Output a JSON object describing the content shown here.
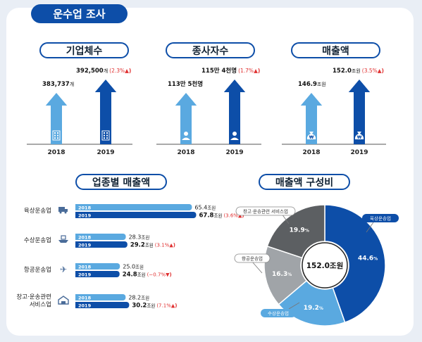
{
  "page": {
    "title": "운수업 조사"
  },
  "kpis": [
    {
      "title": "기업체수",
      "items": [
        {
          "year": "2018",
          "value": "383,737",
          "unit": "개",
          "change": ""
        },
        {
          "year": "2019",
          "value": "392,500",
          "unit": "개",
          "change": "(2.3%"
        }
      ],
      "icon": "building-icon"
    },
    {
      "title": "종사자수",
      "items": [
        {
          "year": "2018",
          "value": "113만 5천명",
          "unit": "",
          "change": ""
        },
        {
          "year": "2019",
          "value": "115만 4천명",
          "unit": "",
          "change": "(1.7%"
        }
      ],
      "icon": "person-icon"
    },
    {
      "title": "매출액",
      "items": [
        {
          "year": "2018",
          "value": "146.9",
          "unit": "조원",
          "change": ""
        },
        {
          "year": "2019",
          "value": "152.0",
          "unit": "조원",
          "change": "(3.5%"
        }
      ],
      "icon": "money-bag-icon"
    }
  ],
  "sales_by_industry": {
    "title": "업종별 매출액",
    "unit": "조원",
    "rows": [
      {
        "name": "육상운송업",
        "icon": "truck-icon",
        "v2018": "65.4",
        "v2019": "67.8",
        "change": "(3.6%",
        "direction": "up"
      },
      {
        "name": "수상운송업",
        "icon": "ship-icon",
        "v2018": "28.3",
        "v2019": "29.2",
        "change": "(3.1%",
        "direction": "up"
      },
      {
        "name": "항공운송업",
        "icon": "airplane-icon",
        "v2018": "25.0",
        "v2019": "24.8",
        "change": "(−0.7%",
        "direction": "down"
      },
      {
        "name": "창고·운송관련\n서비스업",
        "icon": "warehouse-icon",
        "v2018": "28.2",
        "v2019": "30.2",
        "change": "(7.1%",
        "direction": "up"
      }
    ],
    "year_labels": [
      "2018",
      "2019"
    ]
  },
  "composition": {
    "title": "매출액 구성비",
    "center_label": "152.0조원"
  },
  "colors": {
    "dark_blue": "#0d4ea8",
    "light_blue": "#5aa9e0",
    "red": "#e03030",
    "donut_gray": "#a0a4a8",
    "donut_dark": "#5c5f62"
  },
  "chart_data": [
    {
      "type": "bar",
      "title": "기업체수",
      "categories": [
        "2018",
        "2019"
      ],
      "values": [
        383737,
        392500
      ],
      "unit": "개"
    },
    {
      "type": "bar",
      "title": "종사자수",
      "categories": [
        "2018",
        "2019"
      ],
      "values": [
        1135000,
        1154000
      ],
      "unit": "명"
    },
    {
      "type": "bar",
      "title": "매출액",
      "categories": [
        "2018",
        "2019"
      ],
      "values": [
        146.9,
        152.0
      ],
      "unit": "조원"
    },
    {
      "type": "bar",
      "title": "업종별 매출액",
      "categories": [
        "육상운송업",
        "수상운송업",
        "항공운송업",
        "창고·운송관련 서비스업"
      ],
      "series": [
        {
          "name": "2018",
          "values": [
            65.4,
            28.3,
            25.0,
            28.2
          ]
        },
        {
          "name": "2019",
          "values": [
            67.8,
            29.2,
            24.8,
            30.2
          ]
        }
      ],
      "orientation": "horizontal",
      "unit": "조원"
    },
    {
      "type": "pie",
      "title": "매출액 구성비",
      "center_label": "152.0조원",
      "slices": [
        {
          "name": "육상운송업",
          "value": 44.6,
          "label": "44.6",
          "color": "#0d4ea8"
        },
        {
          "name": "수상운송업",
          "value": 19.2,
          "label": "19.2",
          "color": "#5aa9e0"
        },
        {
          "name": "항공운송업",
          "value": 16.3,
          "label": "16.3",
          "color": "#a0a4a8"
        },
        {
          "name": "창고·운송관련 서비스업",
          "value": 19.9,
          "label": "19.9",
          "color": "#5c5f62"
        }
      ],
      "value_unit": "%"
    }
  ]
}
